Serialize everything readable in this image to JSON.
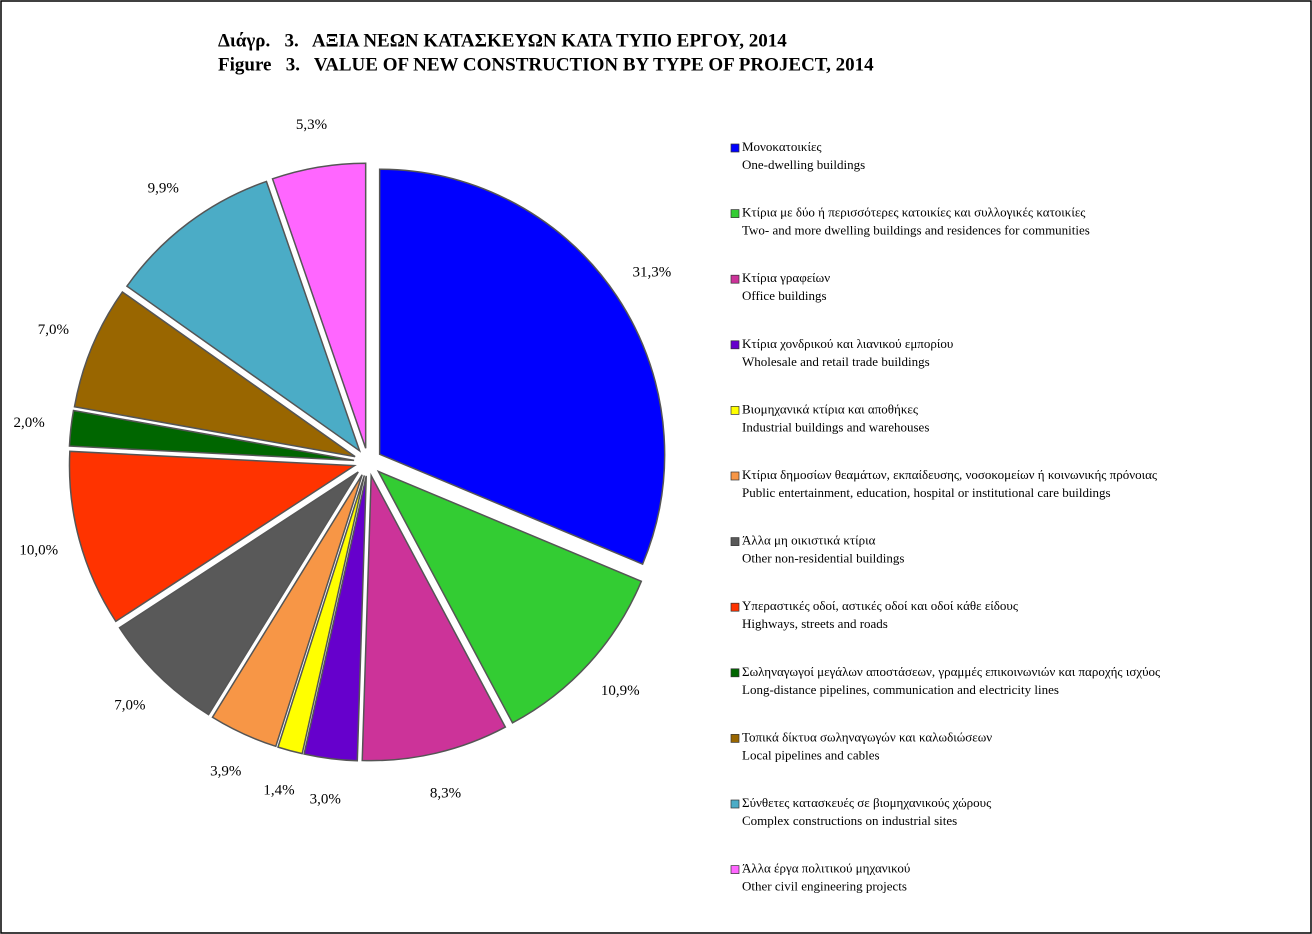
{
  "chart_data": {
    "type": "pie",
    "title": "Διάγρ.   3.   ΑΞΙΑ ΝΕΩΝ ΚΑΤΑΣΚΕΥΩΝ ΚΑΤΑ ΤΥΠΟ ΕΡΓΟΥ, 2014",
    "subtitle": "Figure   3.   VALUE OF NEW CONSTRUCTION BY TYPE OF PROJECT, 2014",
    "categories": [
      "Μονοκατοικίες",
      "Κτίρια με δύο ή περισσότερες κατοικίες και συλλογικές κατοικίες",
      "Κτίρια γραφείων",
      "Κτίρια χονδρικού και λιανικού εμπορίου",
      "Βιομηχανικά κτίρια και αποθήκες",
      "Κτίρια δημοσίων θεαμάτων, εκπαίδευσης, νοσοκομείων ή κοινωνικής πρόνοιας",
      "Άλλα μη οικιστικά κτίρια",
      "Υπεραστικές οδοί, αστικές οδοί και οδοί κάθε είδους",
      "Σωληναγωγοί μεγάλων αποστάσεων, γραμμές επικοινωνιών και παροχής ισχύος",
      "Τοπικά δίκτυα σωληναγωγών και καλωδιώσεων",
      "Σύνθετες κατασκευές σε βιομηχανικούς χώρους",
      "Άλλα έργα πολιτικού μηχανικού"
    ],
    "categories_en": [
      "One-dwelling buildings",
      "Two- and more dwelling buildings and residences for communities",
      "Office buildings",
      "Wholesale and retail trade buildings",
      "Industrial buildings and warehouses",
      "Public entertainment, education, hospital or institutional care buildings",
      "Other non-residential buildings",
      "Highways, streets and roads",
      "Long-distance pipelines, communication and electricity  lines",
      "Local pipelines and cables",
      "Complex constructions on industrial sites",
      "Other civil engineering projects"
    ],
    "values": [
      31.3,
      10.9,
      8.3,
      3.0,
      1.4,
      3.9,
      7.0,
      10.0,
      2.0,
      7.0,
      9.9,
      5.3
    ],
    "value_labels": [
      "31,3%",
      "10,9%",
      "8,3%",
      "3,0%",
      "1,4%",
      "3,9%",
      "7,0%",
      "10,0%",
      "2,0%",
      "7,0%",
      "9,9%",
      "5,3%"
    ],
    "colors": [
      "#0000ff",
      "#33cc33",
      "#cc3399",
      "#6600cc",
      "#ffff00",
      "#f79646",
      "#595959",
      "#ff3300",
      "#006600",
      "#996600",
      "#4bacc6",
      "#ff66ff"
    ]
  }
}
